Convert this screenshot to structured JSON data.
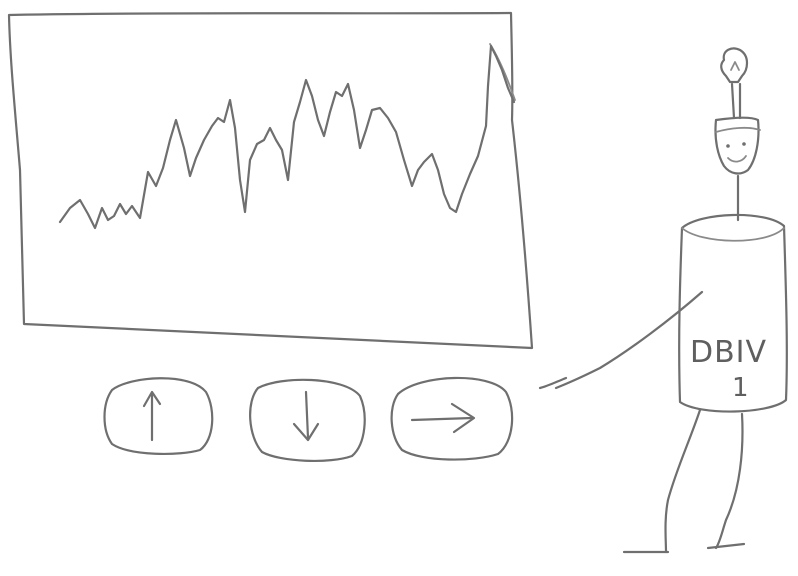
{
  "robot": {
    "label": "DBIV",
    "number": "1"
  },
  "controls": [
    {
      "id": "up",
      "icon": "arrow-up-icon"
    },
    {
      "id": "down",
      "icon": "arrow-down-icon"
    },
    {
      "id": "right",
      "icon": "arrow-right-icon"
    }
  ],
  "colors": {
    "pencil": "#6f6f6f",
    "paper": "#ffffff"
  }
}
